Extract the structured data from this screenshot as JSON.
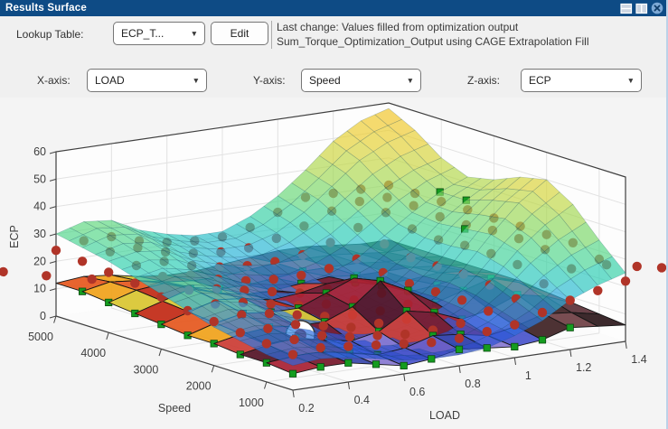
{
  "window": {
    "title": "Results Surface",
    "titlebar_color": "#0e4b85"
  },
  "titlebar": {
    "icons": [
      "split-horizontal",
      "split-vertical",
      "close"
    ]
  },
  "toolbar": {
    "lookup_table_label": "Lookup Table:",
    "lookup_table_value": "ECP_T...",
    "edit_button": "Edit",
    "last_change_line1": "Last change: Values filled from optimization output",
    "last_change_line2": "Sum_Torque_Optimization_Output using CAGE Extrapolation Fill"
  },
  "axis_controls": {
    "x_label": "X-axis:",
    "x_value": "LOAD",
    "y_label": "Y-axis:",
    "y_value": "Speed",
    "z_label": "Z-axis:",
    "z_value": "ECP"
  },
  "chart_data": {
    "type": "surface3d",
    "xlabel": "LOAD",
    "ylabel": "Speed",
    "zlabel": "ECP",
    "x_ticks": [
      0.2,
      0.4,
      0.6,
      0.8,
      1,
      1.2,
      1.4
    ],
    "y_ticks": [
      5000,
      4000,
      3000,
      2000,
      1000
    ],
    "z_ticks": [
      0,
      10,
      20,
      30,
      40,
      50,
      60
    ],
    "x_range": [
      0.2,
      1.4
    ],
    "y_range": [
      500,
      5000
    ],
    "z_range": [
      0,
      60
    ],
    "surface_smooth": {
      "name": "cage-extrapolation-fill-surface",
      "opacity": 0.7,
      "z": [
        [
          30,
          33,
          32,
          27,
          24,
          22,
          22,
          26,
          32,
          40,
          49,
          55,
          58
        ],
        [
          28,
          31,
          30,
          25,
          22,
          20,
          20,
          23,
          29,
          37,
          45,
          50,
          53
        ],
        [
          26,
          28,
          27,
          22,
          19,
          17,
          16,
          19,
          24,
          31,
          38,
          43,
          46
        ],
        [
          23,
          25,
          23,
          19,
          15,
          13,
          12,
          14,
          18,
          25,
          32,
          38,
          42
        ],
        [
          20,
          22,
          20,
          16,
          12,
          10,
          9,
          11,
          15,
          22,
          31,
          38,
          44
        ],
        [
          17,
          19,
          17,
          13,
          10,
          8,
          7,
          9,
          13,
          21,
          32,
          41,
          48
        ],
        [
          14,
          16,
          14,
          11,
          8,
          6,
          6,
          8,
          13,
          22,
          33,
          43,
          50
        ],
        [
          12,
          13,
          12,
          9,
          6,
          5,
          5,
          7,
          12,
          20,
          30,
          38,
          44
        ],
        [
          10,
          11,
          10,
          8,
          5,
          4,
          4,
          6,
          10,
          16,
          24,
          30,
          34
        ],
        [
          9,
          10,
          9,
          7,
          5,
          4,
          4,
          5,
          8,
          12,
          18,
          22,
          25
        ]
      ]
    },
    "surface_table": {
      "name": "ecp-lookup-table-surface",
      "z": [
        [
          12,
          13,
          12,
          10,
          9,
          9,
          10,
          11,
          12,
          12,
          11,
          10,
          10
        ],
        [
          12,
          14,
          13,
          11,
          10,
          10,
          11,
          12,
          12,
          12,
          11,
          10,
          10
        ],
        [
          11,
          14,
          15,
          12,
          10,
          10,
          11,
          12,
          12,
          12,
          11,
          11,
          10
        ],
        [
          10,
          13,
          16,
          13,
          11,
          11,
          12,
          13,
          12,
          12,
          12,
          11,
          10
        ],
        [
          9,
          12,
          15,
          14,
          12,
          13,
          15,
          14,
          12,
          12,
          13,
          12,
          10
        ],
        [
          8,
          11,
          13,
          12,
          12,
          16,
          20,
          16,
          12,
          13,
          15,
          13,
          10
        ],
        [
          8,
          10,
          11,
          10,
          10,
          14,
          22,
          17,
          11,
          14,
          17,
          14,
          9
        ],
        [
          7,
          9,
          10,
          8,
          6,
          8,
          14,
          12,
          8,
          10,
          14,
          12,
          8
        ],
        [
          7,
          8,
          8,
          6,
          4,
          5,
          8,
          7,
          5,
          7,
          10,
          9,
          7
        ],
        [
          6,
          7,
          7,
          5,
          3,
          4,
          6,
          5,
          4,
          5,
          8,
          7,
          6
        ]
      ]
    },
    "optimization_points": {
      "color": "#b03428",
      "z": [
        [
          24,
          26,
          26,
          23,
          21,
          20,
          20,
          22,
          26,
          30,
          30,
          30,
          30
        ],
        [
          23,
          25,
          25,
          22,
          20,
          19,
          19,
          21,
          24,
          28,
          30,
          30,
          30
        ],
        [
          22,
          23,
          23,
          20,
          18,
          17,
          17,
          18,
          21,
          25,
          29,
          30,
          30
        ],
        [
          21,
          22,
          21,
          18,
          16,
          15,
          15,
          16,
          18,
          22,
          26,
          29,
          30
        ],
        [
          19,
          20,
          19,
          17,
          15,
          13,
          13,
          14,
          16,
          20,
          25,
          29,
          30
        ],
        [
          17,
          18,
          17,
          15,
          13,
          12,
          12,
          13,
          15,
          20,
          26,
          30,
          30
        ],
        [
          16,
          17,
          16,
          14,
          12,
          11,
          11,
          12,
          15,
          20,
          26,
          30,
          30
        ],
        [
          15,
          15,
          15,
          13,
          11,
          11,
          11,
          12,
          15,
          19,
          25,
          29,
          30
        ],
        [
          14,
          14,
          14,
          12,
          11,
          10,
          10,
          11,
          14,
          17,
          21,
          25,
          27
        ],
        [
          13,
          14,
          13,
          12,
          11,
          10,
          10,
          11,
          12,
          15,
          18,
          20,
          22
        ]
      ]
    },
    "extra_points": [
      [
        -0.23,
        0.1,
        23
      ],
      [
        -0.15,
        0.17,
        22
      ],
      [
        -0.07,
        0.25,
        21.5
      ],
      [
        1.05,
        0.85,
        23
      ],
      [
        1.12,
        0.88,
        22
      ],
      [
        1.18,
        0.9,
        21
      ]
    ],
    "table_markers": {
      "color": "#149c1f",
      "nodes": [
        [
          0,
          1
        ],
        [
          0,
          2
        ],
        [
          0,
          3
        ],
        [
          0,
          4
        ],
        [
          0,
          5
        ],
        [
          0,
          6
        ],
        [
          0,
          7
        ],
        [
          0,
          8
        ],
        [
          0,
          9
        ],
        [
          1,
          9
        ],
        [
          2,
          9
        ],
        [
          3,
          9
        ],
        [
          4,
          9
        ],
        [
          5,
          9
        ],
        [
          6,
          9
        ],
        [
          7,
          9
        ],
        [
          8,
          9
        ],
        [
          9,
          9
        ],
        [
          10,
          9
        ],
        [
          1,
          8
        ],
        [
          2,
          8
        ],
        [
          3,
          8
        ],
        [
          4,
          8
        ],
        [
          5,
          8
        ],
        [
          6,
          8
        ],
        [
          7,
          8
        ],
        [
          9,
          8
        ],
        [
          2,
          5
        ],
        [
          2,
          6
        ],
        [
          2,
          7
        ],
        [
          3,
          5
        ],
        [
          3,
          6
        ],
        [
          3,
          7
        ],
        [
          4,
          5
        ],
        [
          4,
          6
        ],
        [
          4,
          7
        ],
        [
          5,
          5
        ],
        [
          5,
          6
        ],
        [
          5,
          7
        ],
        [
          6,
          5
        ],
        [
          6,
          6
        ],
        [
          6,
          7
        ],
        [
          7,
          5
        ],
        [
          7,
          6
        ],
        [
          7,
          7
        ],
        [
          8,
          5
        ],
        [
          8,
          6
        ],
        [
          8,
          7
        ],
        [
          2,
          3
        ],
        [
          3,
          3
        ],
        [
          4,
          2
        ],
        [
          5,
          2
        ],
        [
          5,
          3
        ],
        [
          6,
          3
        ],
        [
          7,
          2
        ],
        [
          7,
          4
        ],
        [
          8,
          3
        ],
        [
          8,
          4
        ],
        [
          9,
          5
        ],
        [
          9,
          6
        ],
        [
          10,
          6
        ],
        [
          10,
          7
        ]
      ]
    },
    "surface_markers": [
      [
        11,
        3
      ],
      [
        11,
        4
      ],
      [
        10,
        5
      ]
    ],
    "selected_point": {
      "u": 0.25,
      "v": 0.68,
      "z": 7
    },
    "table_palettes": {
      "left": [
        "#e5581f",
        "#f0a21c",
        "#d9c631",
        "#c22a16"
      ],
      "mid": [
        "#a82134",
        "#77192c",
        "#cb3c35",
        "#551427"
      ],
      "bowl": [
        "#4a55cb",
        "#6a5dc6",
        "#3947ac",
        "#8879d2"
      ],
      "right": [
        "#5d333a",
        "#402225",
        "#6f3f45",
        "#2e1a1d"
      ],
      "red_band": [
        "#d4301f",
        "#aa2218"
      ]
    },
    "smooth_colormap": [
      [
        0,
        "#3038a8"
      ],
      [
        7,
        "#2a52d8"
      ],
      [
        13,
        "#2f86e4"
      ],
      [
        19,
        "#2fb6da"
      ],
      [
        25,
        "#32d0b4"
      ],
      [
        31,
        "#5cd88a"
      ],
      [
        37,
        "#8cd964"
      ],
      [
        43,
        "#bcd94e"
      ],
      [
        49,
        "#e4d23a"
      ],
      [
        55,
        "#f2c92f"
      ],
      [
        60,
        "#eebc2a"
      ]
    ]
  }
}
